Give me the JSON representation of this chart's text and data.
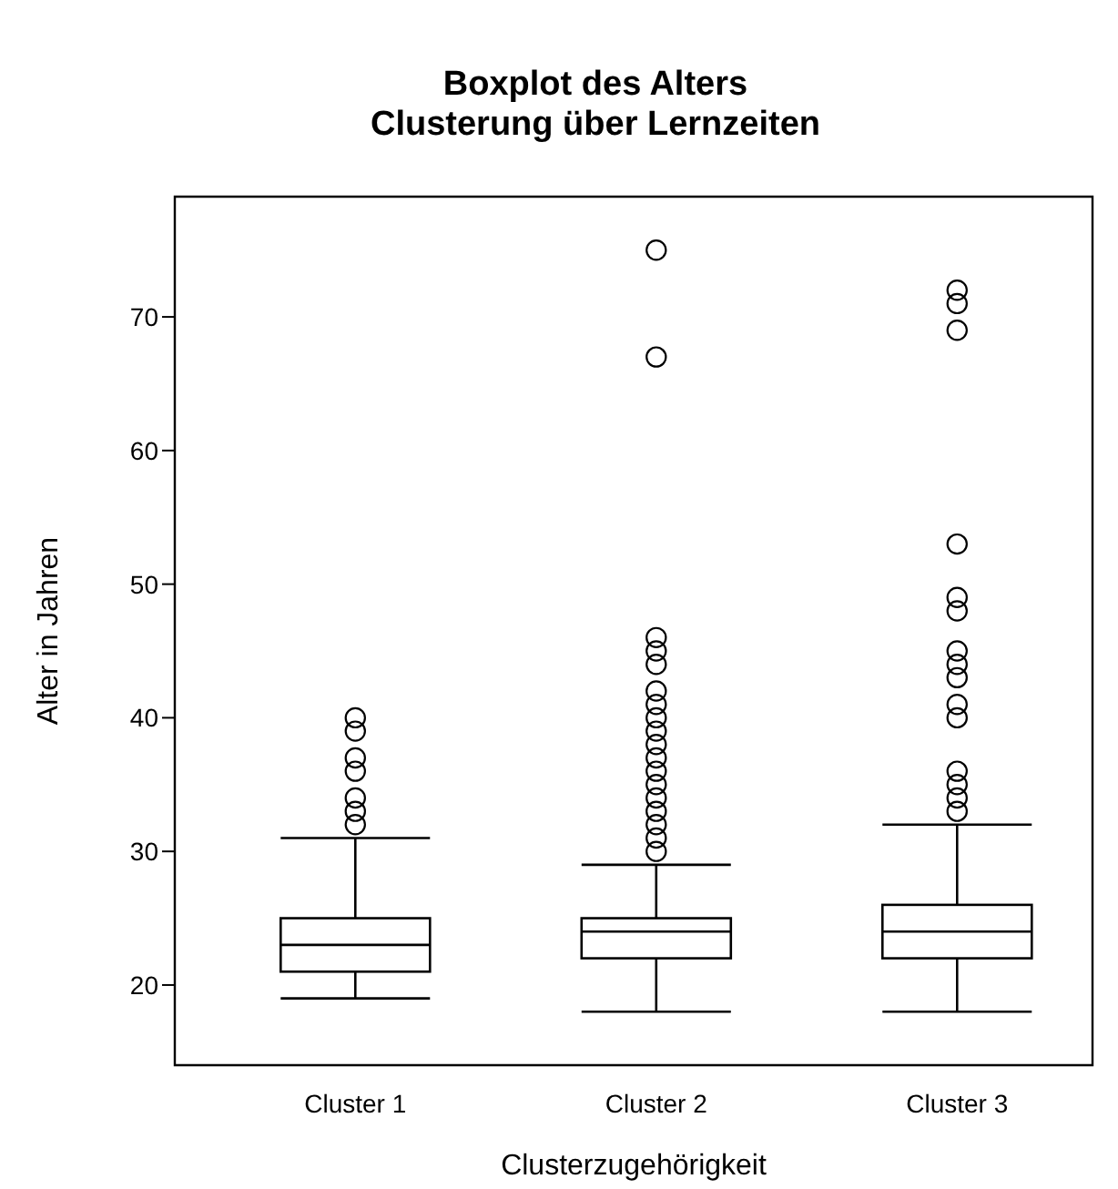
{
  "chart_data": {
    "type": "box",
    "title": "Boxplot des Alters",
    "subtitle": "Clusterung über Lernzeiten",
    "xlabel": "Clusterzugehörigkeit",
    "ylabel": "Alter in Jahren",
    "categories": [
      "Cluster 1",
      "Cluster 2",
      "Cluster 3"
    ],
    "boxes": [
      {
        "low": 19,
        "q1": 21,
        "median": 23,
        "q3": 25,
        "high": 31,
        "outliers": [
          32,
          33,
          34,
          36,
          37,
          39,
          40
        ]
      },
      {
        "low": 18,
        "q1": 22,
        "median": 24,
        "q3": 25,
        "high": 29,
        "outliers": [
          30,
          31,
          32,
          33,
          34,
          35,
          36,
          37,
          38,
          39,
          40,
          41,
          42,
          44,
          45,
          46,
          67,
          75
        ]
      },
      {
        "low": 18,
        "q1": 22,
        "median": 24,
        "q3": 26,
        "high": 32,
        "outliers": [
          33,
          34,
          35,
          36,
          40,
          41,
          43,
          44,
          45,
          48,
          49,
          53,
          69,
          71,
          72
        ]
      }
    ],
    "ylim": [
      14,
      79
    ],
    "yticks": [
      20,
      30,
      40,
      50,
      60,
      70
    ],
    "grid": false,
    "marker": "circle"
  }
}
